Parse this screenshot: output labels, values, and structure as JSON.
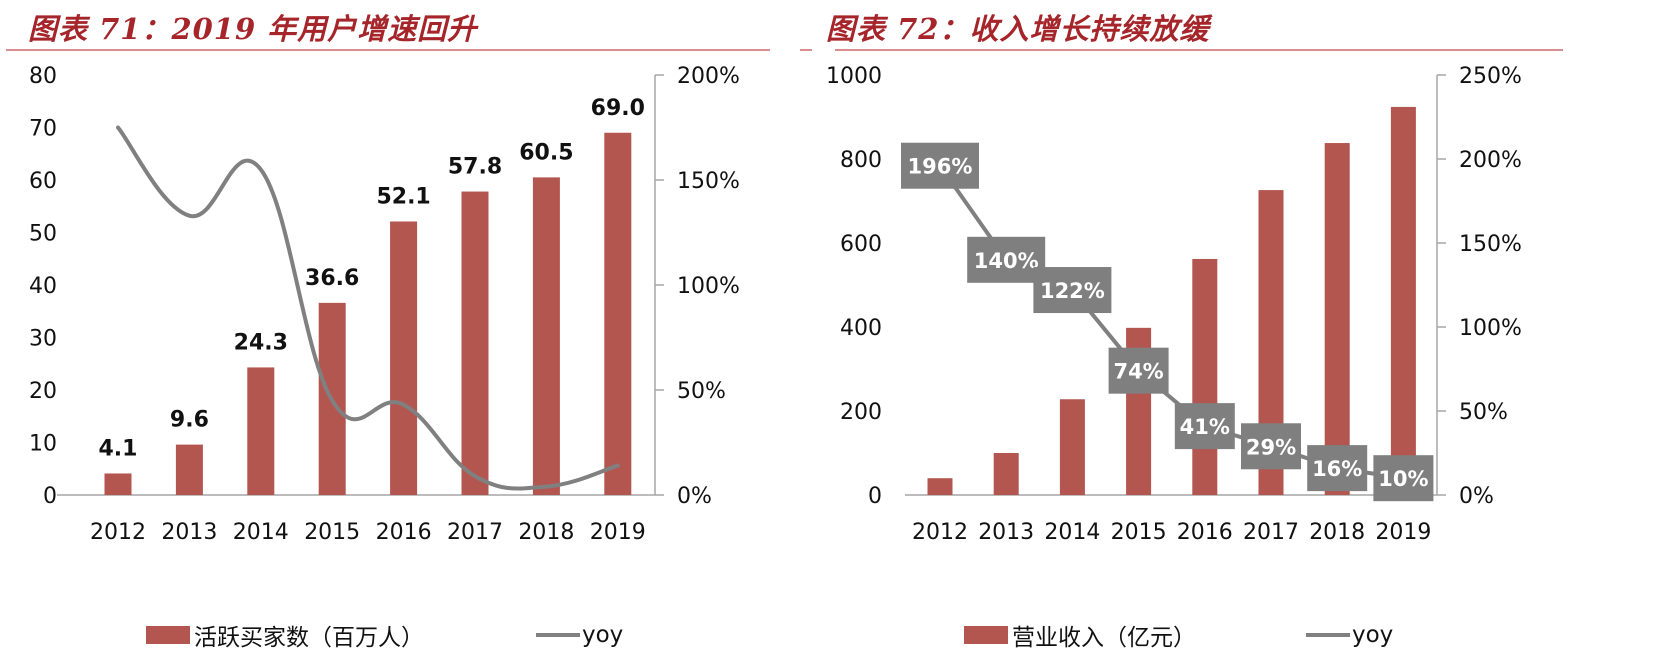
{
  "charts": [
    {
      "title": "图表 71：2019 年用户增速回升",
      "legend": {
        "bar": "活跃买家数（百万人）",
        "line": "yoy"
      },
      "left_axis_ticks": [
        "0",
        "10",
        "20",
        "30",
        "40",
        "50",
        "60",
        "70",
        "80"
      ],
      "right_axis_ticks": [
        "0%",
        "50%",
        "100%",
        "150%",
        "200%"
      ],
      "categories": [
        "2012",
        "2013",
        "2014",
        "2015",
        "2016",
        "2017",
        "2018",
        "2019"
      ],
      "bar_labels": [
        "4.1",
        "9.6",
        "24.3",
        "36.6",
        "52.1",
        "57.8",
        "60.5",
        "69.0"
      ]
    },
    {
      "title": "图表 72：收入增长持续放缓",
      "legend": {
        "bar": "营业收入（亿元）",
        "line": "yoy"
      },
      "left_axis_ticks": [
        "0",
        "200",
        "400",
        "600",
        "800",
        "1000"
      ],
      "right_axis_ticks": [
        "0%",
        "50%",
        "100%",
        "150%",
        "200%",
        "250%"
      ],
      "categories": [
        "2012",
        "2013",
        "2014",
        "2015",
        "2016",
        "2017",
        "2018",
        "2019"
      ],
      "line_labels": [
        "196%",
        "140%",
        "122%",
        "74%",
        "41%",
        "29%",
        "16%",
        "10%"
      ]
    }
  ],
  "colors": {
    "bar": "#b35650",
    "line": "#808080",
    "title": "#a6252a",
    "rule": "#d98d8f",
    "label_box": "#7f7f7f"
  },
  "chart_data": [
    {
      "type": "bar",
      "title": "图表 71：2019 年用户增速回升",
      "categories": [
        "2012",
        "2013",
        "2014",
        "2015",
        "2016",
        "2017",
        "2018",
        "2019"
      ],
      "series": [
        {
          "name": "活跃买家数（百万人）",
          "type": "bar",
          "axis": "left",
          "values": [
            4.1,
            9.6,
            24.3,
            36.6,
            52.1,
            57.8,
            60.5,
            69.0
          ]
        },
        {
          "name": "yoy",
          "type": "line",
          "axis": "right",
          "smooth": true,
          "values": [
            1.75,
            1.33,
            1.55,
            0.45,
            0.43,
            0.09,
            0.04,
            0.14
          ]
        }
      ],
      "xlabel": "",
      "ylabel": "",
      "ylim": [
        0,
        80
      ],
      "y2lim": [
        0,
        2.0
      ],
      "y2_format": "percent",
      "grid": false,
      "legend_position": "bottom"
    },
    {
      "type": "bar",
      "title": "图表 72：收入增长持续放缓",
      "categories": [
        "2012",
        "2013",
        "2014",
        "2015",
        "2016",
        "2017",
        "2018",
        "2019"
      ],
      "series": [
        {
          "name": "营业收入（亿元）",
          "type": "bar",
          "axis": "left",
          "values": [
            40,
            100,
            228,
            398,
            562,
            726,
            838,
            924
          ]
        },
        {
          "name": "yoy",
          "type": "line",
          "axis": "right",
          "values": [
            1.96,
            1.4,
            1.22,
            0.74,
            0.41,
            0.29,
            0.16,
            0.1
          ]
        }
      ],
      "xlabel": "",
      "ylabel": "",
      "ylim": [
        0,
        1000
      ],
      "y2lim": [
        0,
        2.5
      ],
      "y2_format": "percent",
      "grid": false,
      "legend_position": "bottom"
    }
  ]
}
